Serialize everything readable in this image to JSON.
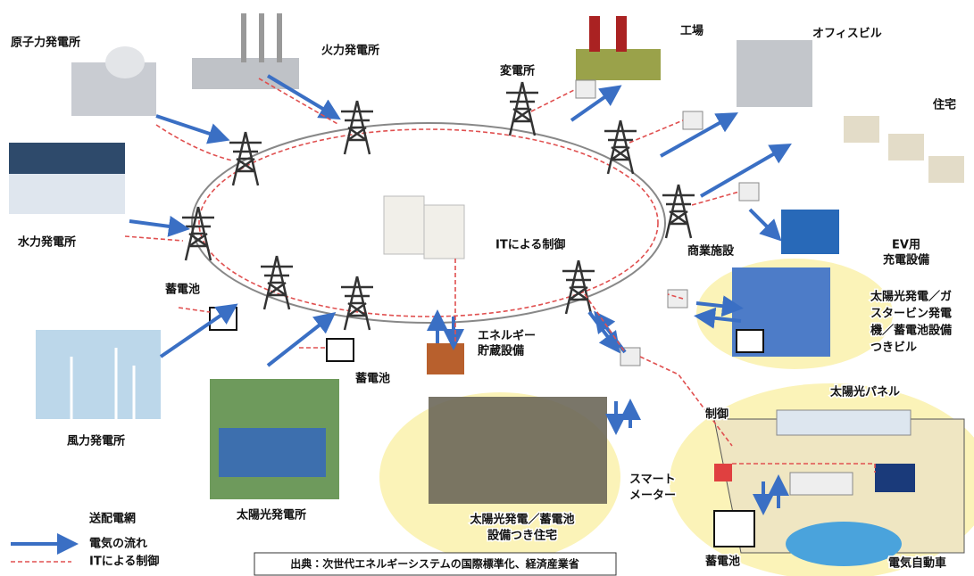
{
  "labels": {
    "nuclear": "原子力発電所",
    "thermal": "火力発電所",
    "substation": "変電所",
    "factory": "工場",
    "office": "オフィスビル",
    "houses": "住宅",
    "hydro": "水力発電所",
    "battery_left": "蓄電池",
    "it_control": "ITによる制御",
    "commercial": "商業施設",
    "ev_charger": [
      "EV用",
      "充電設備"
    ],
    "solar_building": [
      "太陽光発電／ガ",
      "スタービン発電",
      "機／蓄電池設備",
      "つきビル"
    ],
    "energy_storage": [
      "エネルギー",
      "貯蔵設備"
    ],
    "battery_mid": "蓄電池",
    "wind": "風力発電所",
    "solar_panel": "太陽光パネル",
    "control": "制御",
    "smart_meter": [
      "スマート",
      "メーター"
    ],
    "solar_plant": "太陽光発電所",
    "solar_houses": [
      "太陽光発電／蓄電池",
      "設備つき住宅"
    ],
    "battery_home": "蓄電池",
    "ev": "電気自動車"
  },
  "legend": {
    "title": "送配電網",
    "items": [
      "電気の流れ",
      "ITによる制御"
    ]
  },
  "source": "出典：次世代エネルギーシステムの国際標準化、経済産業省"
}
